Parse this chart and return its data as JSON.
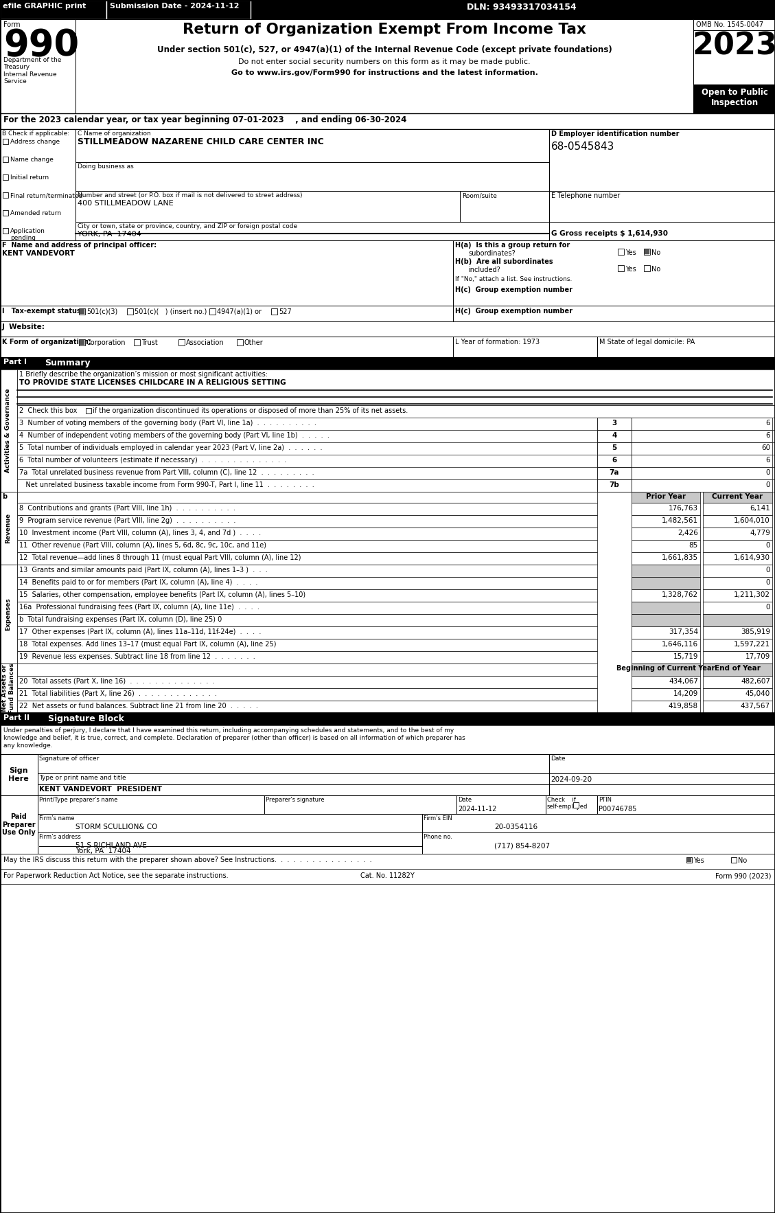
{
  "efile_text": "efile GRAPHIC print",
  "submission_date": "Submission Date - 2024-11-12",
  "dln": "DLN: 93493317034154",
  "title": "Return of Organization Exempt From Income Tax",
  "subtitle1": "Under section 501(c), 527, or 4947(a)(1) of the Internal Revenue Code (except private foundations)",
  "subtitle2": "Do not enter social security numbers on this form as it may be made public.",
  "subtitle3": "Go to www.irs.gov/Form990 for instructions and the latest information.",
  "omb": "OMB No. 1545-0047",
  "year": "2023",
  "open_to_public": "Open to Public\nInspection",
  "dept_treasury": "Department of the\nTreasury\nInternal Revenue\nService",
  "line_a": "For the 2023 calendar year, or tax year beginning 07-01-2023    , and ending 06-30-2024",
  "b_label": "B Check if applicable:",
  "b_items": [
    "Address change",
    "Name change",
    "Initial return",
    "Final return/terminated",
    "Amended return",
    "Application\npending"
  ],
  "c_label": "C Name of organization",
  "org_name": "STILLMEADOW NAZARENE CHILD CARE CENTER INC",
  "dba_label": "Doing business as",
  "address_label": "Number and street (or P.O. box if mail is not delivered to street address)",
  "room_label": "Room/suite",
  "address_val": "400 STILLMEADOW LANE",
  "city_label": "City or town, state or province, country, and ZIP or foreign postal code",
  "city_val": "YORK, PA  17404",
  "d_label": "D Employer identification number",
  "ein": "68-0545843",
  "e_label": "E Telephone number",
  "g_label": "G Gross receipts $",
  "gross_receipts": "1,614,930",
  "f_label": "F  Name and address of principal officer:",
  "principal_officer": "KENT VANDEVORT",
  "ha_label": "H(a)  Is this a group return for",
  "ha_sub": "subordinates?",
  "hb_label": "H(b)  Are all subordinates",
  "hb_sub": "included?",
  "hb_note": "If \"No,\" attach a list. See instructions.",
  "hc_label": "H(c)  Group exemption number",
  "i_label": "I   Tax-exempt status:",
  "i_options": [
    "501(c)(3)",
    "501(c)(   ) (insert no.)",
    "4947(a)(1) or",
    "527"
  ],
  "j_label": "J  Website:",
  "k_label": "K Form of organization:",
  "k_options": [
    "Corporation",
    "Trust",
    "Association",
    "Other"
  ],
  "l_label": "L Year of formation: 1973",
  "m_label": "M State of legal domicile: PA",
  "line1_label": "1 Briefly describe the organization’s mission or most significant activities:",
  "line1_val": "TO PROVIDE STATE LICENSES CHILDCARE IN A RELIGIOUS SETTING",
  "line2_text": "2  Check this box",
  "line2_cont": "if the organization discontinued its operations or disposed of more than 25% of its net assets.",
  "lines_37": [
    [
      "3  Number of voting members of the governing body (Part VI, line 1a)  .  .  .  .  .  .  .  .  .  .",
      "3",
      "6"
    ],
    [
      "4  Number of independent voting members of the governing body (Part VI, line 1b)  .  .  .  .  .",
      "4",
      "6"
    ],
    [
      "5  Total number of individuals employed in calendar year 2023 (Part V, line 2a)  .  .  .  .  .  .",
      "5",
      "60"
    ],
    [
      "6  Total number of volunteers (estimate if necessary)  .  .  .  .  .  .  .  .  .  .  .  .  .  .",
      "6",
      "6"
    ],
    [
      "7a  Total unrelated business revenue from Part VIII, column (C), line 12  .  .  .  .  .  .  .  .  .",
      "7a",
      "0"
    ],
    [
      "   Net unrelated business taxable income from Form 990-T, Part I, line 11  .  .  .  .  .  .  .  .",
      "7b",
      "0"
    ]
  ],
  "prior_year_header": "Prior Year",
  "current_year_header": "Current Year",
  "revenue_lines": [
    [
      "8  Contributions and grants (Part VIII, line 1h)  .  .  .  .  .  .  .  .  .  .",
      "176,763",
      "6,141",
      false
    ],
    [
      "9  Program service revenue (Part VIII, line 2g)  .  .  .  .  .  .  .  .  .  .",
      "1,482,561",
      "1,604,010",
      false
    ],
    [
      "10  Investment income (Part VIII, column (A), lines 3, 4, and 7d )  .  .  .  .",
      "2,426",
      "4,779",
      false
    ],
    [
      "11  Other revenue (Part VIII, column (A), lines 5, 6d, 8c, 9c, 10c, and 11e)",
      "85",
      "0",
      false
    ],
    [
      "12  Total revenue—add lines 8 through 11 (must equal Part VIII, column (A), line 12)",
      "1,661,835",
      "1,614,930",
      false
    ]
  ],
  "expense_lines": [
    [
      "13  Grants and similar amounts paid (Part IX, column (A), lines 1–3 )  .  .  .",
      "",
      "0",
      true
    ],
    [
      "14  Benefits paid to or for members (Part IX, column (A), line 4)  .  .  .  .",
      "",
      "0",
      true
    ],
    [
      "15  Salaries, other compensation, employee benefits (Part IX, column (A), lines 5–10)",
      "1,328,762",
      "1,211,302",
      false
    ],
    [
      "16a  Professional fundraising fees (Part IX, column (A), line 11e)  .  .  .  .",
      "",
      "0",
      true
    ],
    [
      "b  Total fundraising expenses (Part IX, column (D), line 25) 0",
      null,
      null,
      true
    ],
    [
      "17  Other expenses (Part IX, column (A), lines 11a–11d, 11f-24e)  .  .  .  .",
      "317,354",
      "385,919",
      false
    ],
    [
      "18  Total expenses. Add lines 13–17 (must equal Part IX, column (A), line 25)",
      "1,646,116",
      "1,597,221",
      false
    ],
    [
      "19  Revenue less expenses. Subtract line 18 from line 12  .  .  .  .  .  .  .",
      "15,719",
      "17,709",
      false
    ]
  ],
  "beg_year_header": "Beginning of Current Year",
  "end_year_header": "End of Year",
  "na_lines": [
    [
      "20  Total assets (Part X, line 16)  .  .  .  .  .  .  .  .  .  .  .  .  .  .",
      "434,067",
      "482,607"
    ],
    [
      "21  Total liabilities (Part X, line 26)  .  .  .  .  .  .  .  .  .  .  .  .  .",
      "14,209",
      "45,040"
    ],
    [
      "22  Net assets or fund balances. Subtract line 21 from line 20  .  .  .  .  .",
      "419,858",
      "437,567"
    ]
  ],
  "sig_text1": "Under penalties of perjury, I declare that I have examined this return, including accompanying schedules and statements, and to the best of my",
  "sig_text2": "knowledge and belief, it is true, correct, and complete. Declaration of preparer (other than officer) is based on all information of which preparer has",
  "sig_text3": "any knowledge.",
  "sig_officer_label": "Signature of officer",
  "sig_date_label": "Date",
  "sig_date_val": "2024-09-20",
  "sig_name_label": "Type or print name and title",
  "sig_name_val": "KENT VANDEVORT  PRESIDENT",
  "preparer_name_label": "Print/Type preparer’s name",
  "preparer_sig_label": "Preparer’s signature",
  "preparer_date_label": "Date",
  "preparer_date_val": "2024-11-12",
  "preparer_check_label": "Check    if\nself-employed",
  "preparer_ptin_label": "PTIN",
  "preparer_ptin_val": "P00746785",
  "firm_name_label": "Firm’s name",
  "firm_name_val": "STORM SCULLION& CO",
  "firm_ein_label": "Firm’s EIN",
  "firm_ein_val": "20-0354116",
  "firm_address_label": "Firm’s address",
  "firm_address_val": "51 S RICHLAND AVE",
  "firm_city_val": "York, PA  17404",
  "firm_phone_label": "Phone no.",
  "firm_phone_val": "(717) 854-8207",
  "discuss_label": "May the IRS discuss this return with the preparer shown above? See Instructions.  .  .  .  .  .  .  .  .  .  .  .  .  .  .  .",
  "paperwork_label": "For Paperwork Reduction Act Notice, see the separate instructions.",
  "cat_label": "Cat. No. 11282Y",
  "form_bottom": "Form 990 (2023)",
  "side_activities": "Activities & Governance",
  "side_revenue": "Revenue",
  "side_expenses": "Expenses",
  "side_net_assets": "Net Assets or\nFund Balances"
}
